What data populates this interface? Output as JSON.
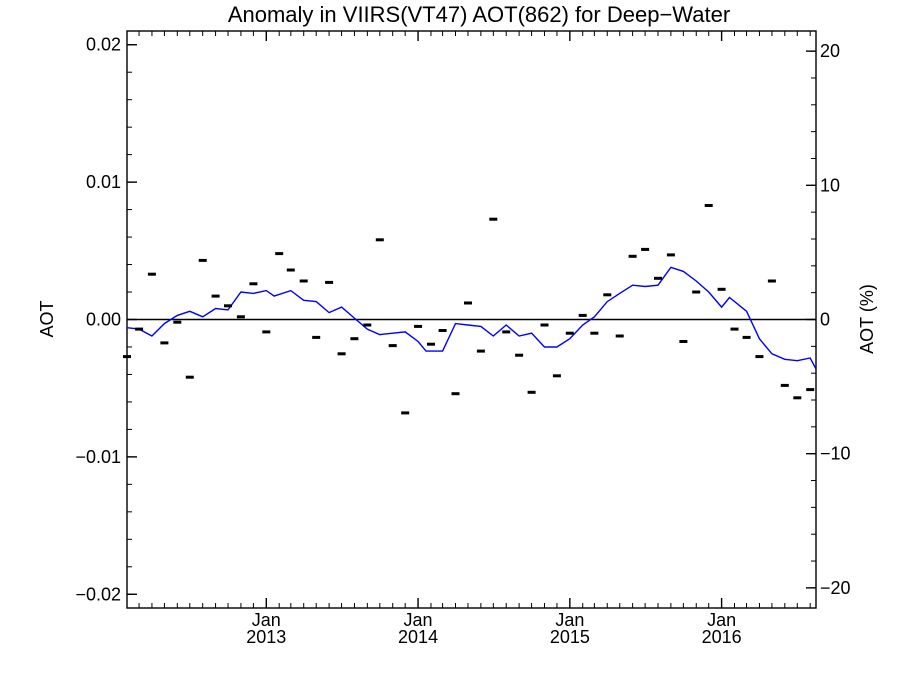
{
  "chart_data": {
    "type": "scatter",
    "title": "Anomaly in VIIRS(VT47) AOT(862) for Deep−Water",
    "ylabel_left": "AOT",
    "ylabel_right": "AOT (%)",
    "ylim_left": [
      -0.021,
      0.021
    ],
    "ylim_right": [
      -21.5,
      21.5
    ],
    "left_ticks": [
      {
        "value": 0.02,
        "label": "0.02"
      },
      {
        "value": 0.01,
        "label": "0.01"
      },
      {
        "value": 0.0,
        "label": "0.00"
      },
      {
        "value": -0.01,
        "label": "−0.01"
      },
      {
        "value": -0.02,
        "label": "−0.02"
      }
    ],
    "right_ticks": [
      {
        "value": 20,
        "label": "20"
      },
      {
        "value": 10,
        "label": "10"
      },
      {
        "value": 0,
        "label": "0"
      },
      {
        "value": -10,
        "label": "−10"
      },
      {
        "value": -20,
        "label": "−20"
      }
    ],
    "xlim": [
      "2012-02-01",
      "2016-08-15"
    ],
    "x_ticks": [
      {
        "date": "2013-01-01",
        "month": "Jan",
        "year": "2013"
      },
      {
        "date": "2014-01-01",
        "month": "Jan",
        "year": "2014"
      },
      {
        "date": "2015-01-01",
        "month": "Jan",
        "year": "2015"
      },
      {
        "date": "2016-01-01",
        "month": "Jan",
        "year": "2016"
      }
    ],
    "zero_line": 0,
    "colors": {
      "line": "#0000ff",
      "markers": "#000000",
      "axes": "#000000"
    },
    "series": [
      {
        "kind": "monthly-markers",
        "points": [
          {
            "x": "2012-02-01",
            "y": -0.0027
          },
          {
            "x": "2012-03-01",
            "y": -0.0007
          },
          {
            "x": "2012-04-01",
            "y": 0.0033
          },
          {
            "x": "2012-05-01",
            "y": -0.0017
          },
          {
            "x": "2012-06-01",
            "y": -0.0002
          },
          {
            "x": "2012-07-01",
            "y": -0.0042
          },
          {
            "x": "2012-08-01",
            "y": 0.0043
          },
          {
            "x": "2012-09-01",
            "y": 0.0017
          },
          {
            "x": "2012-10-01",
            "y": 0.001
          },
          {
            "x": "2012-11-01",
            "y": 0.0002
          },
          {
            "x": "2012-12-01",
            "y": 0.0026
          },
          {
            "x": "2013-01-01",
            "y": -0.0009
          },
          {
            "x": "2013-02-01",
            "y": 0.0048
          },
          {
            "x": "2013-03-01",
            "y": 0.0036
          },
          {
            "x": "2013-04-01",
            "y": 0.0028
          },
          {
            "x": "2013-05-01",
            "y": -0.0013
          },
          {
            "x": "2013-06-01",
            "y": 0.0027
          },
          {
            "x": "2013-07-01",
            "y": -0.0025
          },
          {
            "x": "2013-08-01",
            "y": -0.0014
          },
          {
            "x": "2013-09-01",
            "y": -0.0004
          },
          {
            "x": "2013-10-01",
            "y": 0.0058
          },
          {
            "x": "2013-11-01",
            "y": -0.0019
          },
          {
            "x": "2013-12-01",
            "y": -0.0068
          },
          {
            "x": "2014-01-01",
            "y": -0.0005
          },
          {
            "x": "2014-02-01",
            "y": -0.0018
          },
          {
            "x": "2014-03-01",
            "y": -0.0008
          },
          {
            "x": "2014-04-01",
            "y": -0.0054
          },
          {
            "x": "2014-05-01",
            "y": 0.0012
          },
          {
            "x": "2014-06-01",
            "y": -0.0023
          },
          {
            "x": "2014-07-01",
            "y": 0.0073
          },
          {
            "x": "2014-08-01",
            "y": -0.0009
          },
          {
            "x": "2014-09-01",
            "y": -0.0026
          },
          {
            "x": "2014-10-01",
            "y": -0.0053
          },
          {
            "x": "2014-11-01",
            "y": -0.0004
          },
          {
            "x": "2014-12-01",
            "y": -0.0041
          },
          {
            "x": "2015-01-01",
            "y": -0.001
          },
          {
            "x": "2015-02-01",
            "y": 0.0003
          },
          {
            "x": "2015-03-01",
            "y": -0.001
          },
          {
            "x": "2015-04-01",
            "y": 0.0018
          },
          {
            "x": "2015-05-01",
            "y": -0.0012
          },
          {
            "x": "2015-06-01",
            "y": 0.0046
          },
          {
            "x": "2015-07-01",
            "y": 0.0051
          },
          {
            "x": "2015-08-01",
            "y": 0.003
          },
          {
            "x": "2015-09-01",
            "y": 0.0047
          },
          {
            "x": "2015-10-01",
            "y": -0.0016
          },
          {
            "x": "2015-11-01",
            "y": 0.002
          },
          {
            "x": "2015-12-01",
            "y": 0.0083
          },
          {
            "x": "2016-01-01",
            "y": 0.0022
          },
          {
            "x": "2016-02-01",
            "y": -0.0007
          },
          {
            "x": "2016-03-01",
            "y": -0.0013
          },
          {
            "x": "2016-04-01",
            "y": -0.0027
          },
          {
            "x": "2016-05-01",
            "y": 0.0028
          },
          {
            "x": "2016-06-01",
            "y": -0.0048
          },
          {
            "x": "2016-07-01",
            "y": -0.0057
          },
          {
            "x": "2016-08-01",
            "y": -0.0051
          }
        ]
      },
      {
        "kind": "smoothed-line",
        "points": [
          {
            "x": "2012-02-01",
            "y": -0.0006
          },
          {
            "x": "2012-03-01",
            "y": -0.0007
          },
          {
            "x": "2012-04-01",
            "y": -0.0012
          },
          {
            "x": "2012-05-01",
            "y": -0.0003
          },
          {
            "x": "2012-06-01",
            "y": 0.0003
          },
          {
            "x": "2012-07-01",
            "y": 0.0006
          },
          {
            "x": "2012-08-01",
            "y": 0.0002
          },
          {
            "x": "2012-09-01",
            "y": 0.0008
          },
          {
            "x": "2012-10-01",
            "y": 0.0007
          },
          {
            "x": "2012-11-01",
            "y": 0.002
          },
          {
            "x": "2012-12-01",
            "y": 0.0019
          },
          {
            "x": "2013-01-01",
            "y": 0.0021
          },
          {
            "x": "2013-01-20",
            "y": 0.0017
          },
          {
            "x": "2013-03-01",
            "y": 0.0021
          },
          {
            "x": "2013-04-01",
            "y": 0.0014
          },
          {
            "x": "2013-05-01",
            "y": 0.0013
          },
          {
            "x": "2013-06-01",
            "y": 0.0005
          },
          {
            "x": "2013-07-01",
            "y": 0.0009
          },
          {
            "x": "2013-08-01",
            "y": 0.0001
          },
          {
            "x": "2013-09-01",
            "y": -0.0007
          },
          {
            "x": "2013-10-01",
            "y": -0.0011
          },
          {
            "x": "2013-11-01",
            "y": -0.001
          },
          {
            "x": "2013-12-01",
            "y": -0.0009
          },
          {
            "x": "2014-01-01",
            "y": -0.0016
          },
          {
            "x": "2014-01-20",
            "y": -0.0023
          },
          {
            "x": "2014-03-01",
            "y": -0.0023
          },
          {
            "x": "2014-04-01",
            "y": -0.0003
          },
          {
            "x": "2014-05-01",
            "y": -0.0004
          },
          {
            "x": "2014-06-01",
            "y": -0.0005
          },
          {
            "x": "2014-07-01",
            "y": -0.0012
          },
          {
            "x": "2014-08-01",
            "y": -0.0004
          },
          {
            "x": "2014-09-01",
            "y": -0.0012
          },
          {
            "x": "2014-10-01",
            "y": -0.001
          },
          {
            "x": "2014-11-01",
            "y": -0.002
          },
          {
            "x": "2014-12-01",
            "y": -0.002
          },
          {
            "x": "2015-01-01",
            "y": -0.0014
          },
          {
            "x": "2015-02-01",
            "y": -0.0004
          },
          {
            "x": "2015-03-01",
            "y": 0.0002
          },
          {
            "x": "2015-04-01",
            "y": 0.0013
          },
          {
            "x": "2015-05-01",
            "y": 0.0019
          },
          {
            "x": "2015-06-01",
            "y": 0.0025
          },
          {
            "x": "2015-07-01",
            "y": 0.0024
          },
          {
            "x": "2015-08-01",
            "y": 0.0025
          },
          {
            "x": "2015-09-01",
            "y": 0.0038
          },
          {
            "x": "2015-10-01",
            "y": 0.0035
          },
          {
            "x": "2015-11-01",
            "y": 0.0028
          },
          {
            "x": "2015-12-01",
            "y": 0.002
          },
          {
            "x": "2016-01-01",
            "y": 0.0009
          },
          {
            "x": "2016-01-20",
            "y": 0.0016
          },
          {
            "x": "2016-03-01",
            "y": 0.0006
          },
          {
            "x": "2016-04-01",
            "y": -0.0014
          },
          {
            "x": "2016-05-01",
            "y": -0.0025
          },
          {
            "x": "2016-06-01",
            "y": -0.0029
          },
          {
            "x": "2016-07-01",
            "y": -0.003
          },
          {
            "x": "2016-08-01",
            "y": -0.0028
          },
          {
            "x": "2016-08-15",
            "y": -0.0036
          }
        ]
      }
    ]
  }
}
